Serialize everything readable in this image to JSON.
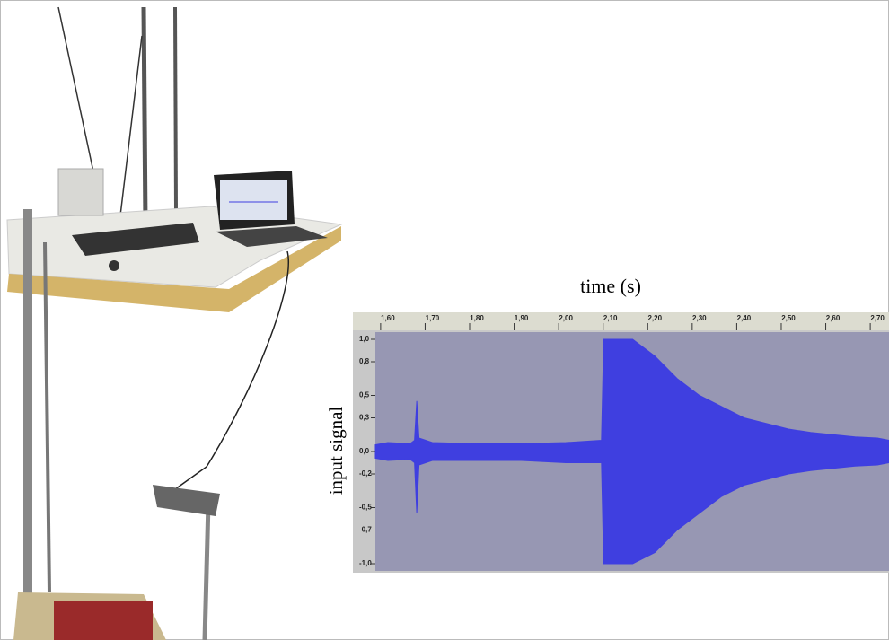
{
  "chart_data": {
    "type": "waveform",
    "title": "time (s)",
    "y_label": "input signal",
    "x": [
      1.572,
      1.6,
      1.65,
      1.66,
      1.665,
      1.67,
      1.7,
      1.8,
      1.9,
      2.0,
      2.08,
      2.085,
      2.1,
      2.15,
      2.2,
      2.25,
      2.3,
      2.35,
      2.4,
      2.45,
      2.5,
      2.55,
      2.6,
      2.65,
      2.7,
      2.726
    ],
    "series": [
      {
        "color": "#3f3fe0",
        "values": [
          0.06,
          0.08,
          0.07,
          0.1,
          0.45,
          0.12,
          0.08,
          0.07,
          0.07,
          0.08,
          0.1,
          1.0,
          1.0,
          1.0,
          0.85,
          0.65,
          0.5,
          0.4,
          0.3,
          0.25,
          0.2,
          0.17,
          0.15,
          0.13,
          0.12,
          0.1
        ]
      },
      {
        "color": "#3f3fe0",
        "values": [
          -0.06,
          -0.08,
          -0.07,
          -0.1,
          -0.55,
          -0.12,
          -0.08,
          -0.08,
          -0.08,
          -0.1,
          -0.1,
          -1.0,
          -1.0,
          -1.0,
          -0.9,
          -0.7,
          -0.55,
          -0.4,
          -0.3,
          -0.25,
          -0.2,
          -0.17,
          -0.15,
          -0.13,
          -0.12,
          -0.1
        ]
      }
    ],
    "xlim": [
      1.572,
      2.726
    ],
    "ylim": [
      -1.064,
      1.064
    ],
    "xticks": [
      {
        "value": 1.6,
        "label": "1,60"
      },
      {
        "value": 1.7,
        "label": "1,70"
      },
      {
        "value": 1.8,
        "label": "1,80"
      },
      {
        "value": 1.9,
        "label": "1,90"
      },
      {
        "value": 2.0,
        "label": "2,00"
      },
      {
        "value": 2.1,
        "label": "2,10"
      },
      {
        "value": 2.2,
        "label": "2,20"
      },
      {
        "value": 2.3,
        "label": "2,30"
      },
      {
        "value": 2.4,
        "label": "2,40"
      },
      {
        "value": 2.5,
        "label": "2,50"
      },
      {
        "value": 2.6,
        "label": "2,60"
      },
      {
        "value": 2.7,
        "label": "2,70"
      }
    ],
    "yticks": [
      {
        "value": 1.0,
        "label": "1,0"
      },
      {
        "value": 0.8,
        "label": "0,8"
      },
      {
        "value": 0.5,
        "label": "0,5"
      },
      {
        "value": 0.3,
        "label": "0,3"
      },
      {
        "value": 0.0,
        "label": "0,0"
      },
      {
        "value": -0.2,
        "label": "-0,2"
      },
      {
        "value": -0.5,
        "label": "-0,5"
      },
      {
        "value": -0.7,
        "label": "-0,7"
      },
      {
        "value": -1.0,
        "label": "-1,0"
      }
    ]
  }
}
